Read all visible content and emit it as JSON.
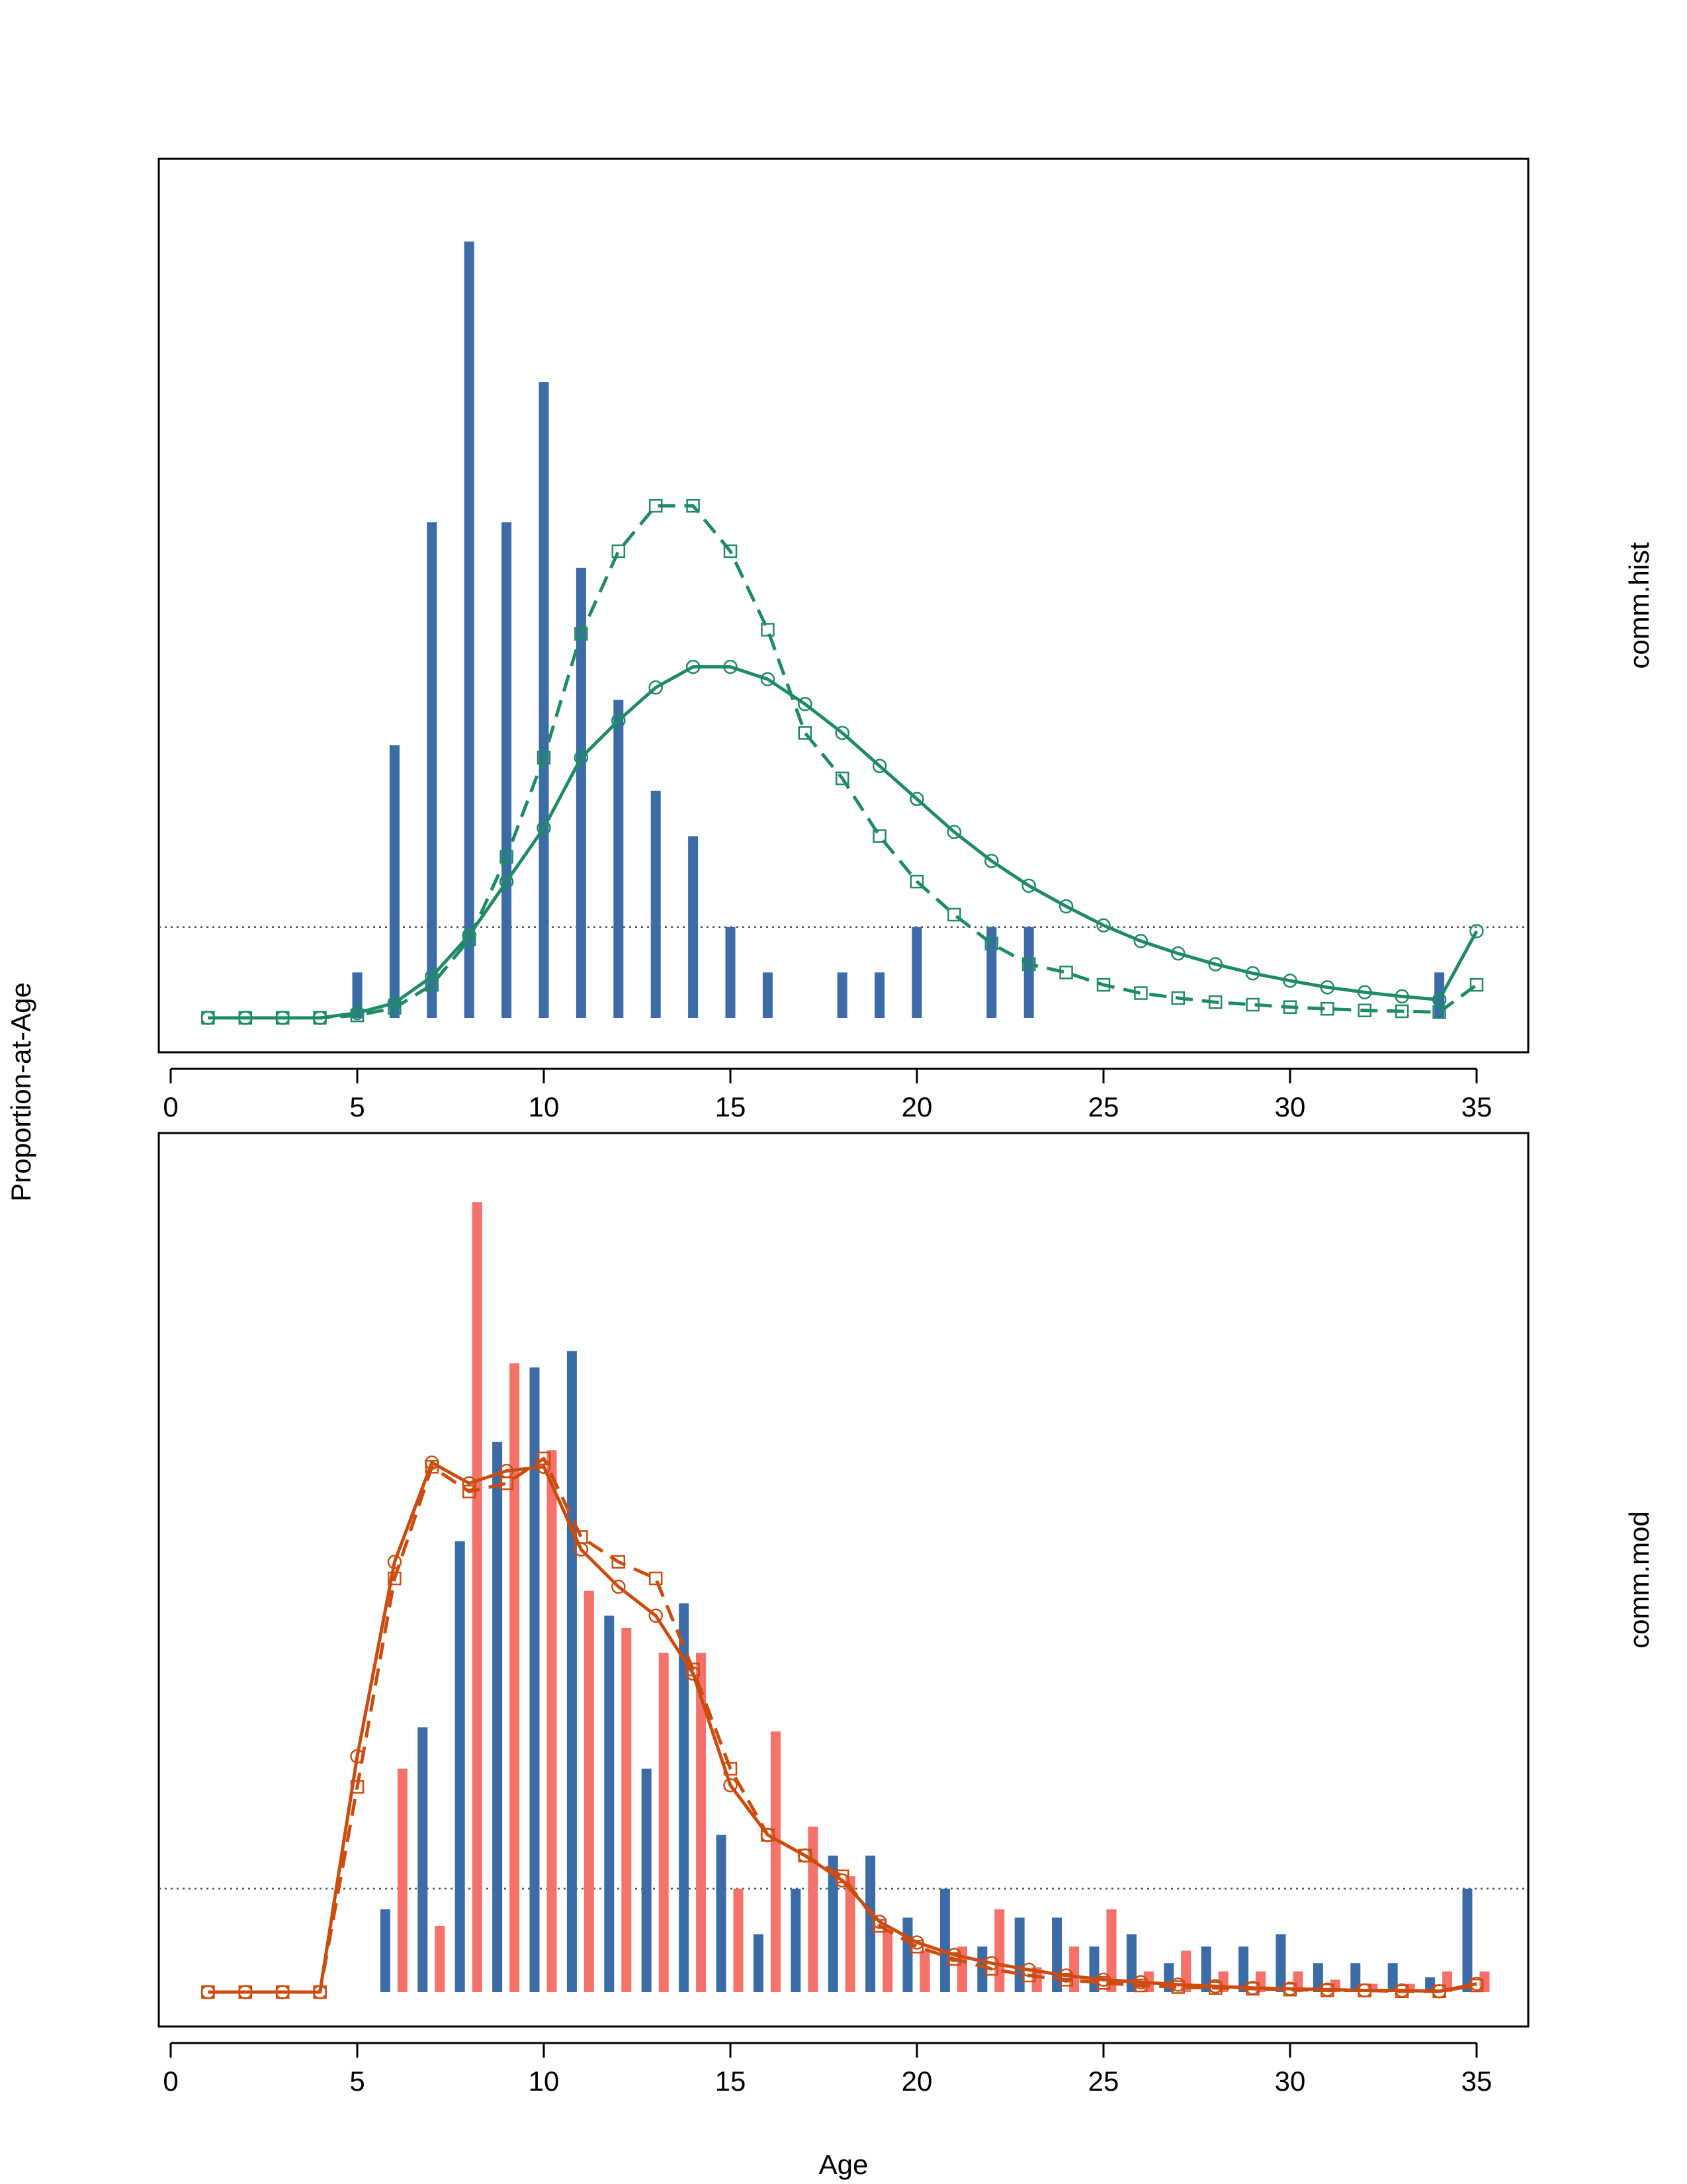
{
  "figure": {
    "ylabel": "Proportion-at-Age",
    "xlabel": "Age"
  },
  "colors": {
    "obs_bar": "#3c6ca8",
    "obs2_bar": "#f4726a",
    "panel1_line": "#1f8a68",
    "panel2_line": "#cc4c0f",
    "ref_line": "#555555"
  },
  "chart_data": [
    {
      "type": "bar",
      "panel_label": "comm.hist",
      "xlim": [
        0,
        36
      ],
      "ylim": [
        0,
        1
      ],
      "x_ticks": [
        0,
        5,
        10,
        15,
        20,
        25,
        30,
        35
      ],
      "y_ticks_visible": false,
      "grid": false,
      "reference_line_y": 0.11,
      "bars": {
        "x": [
          5,
          6,
          7,
          8,
          9,
          10,
          11,
          12,
          13,
          14,
          15,
          16,
          18,
          19,
          20,
          22,
          23,
          34
        ],
        "values": [
          0.055,
          0.33,
          0.6,
          0.94,
          0.6,
          0.77,
          0.545,
          0.385,
          0.275,
          0.22,
          0.11,
          0.055,
          0.055,
          0.055,
          0.11,
          0.11,
          0.11,
          0.055
        ]
      },
      "series": [
        {
          "line": "solid",
          "marker": "circle",
          "x": [
            1,
            2,
            3,
            4,
            5,
            6,
            7,
            8,
            9,
            10,
            11,
            12,
            13,
            14,
            15,
            16,
            17,
            18,
            19,
            20,
            21,
            22,
            23,
            24,
            25,
            26,
            27,
            28,
            29,
            30,
            31,
            32,
            33,
            34,
            35
          ],
          "values": [
            0,
            0,
            0,
            0,
            0.006,
            0.018,
            0.05,
            0.1,
            0.165,
            0.23,
            0.315,
            0.36,
            0.4,
            0.425,
            0.425,
            0.41,
            0.38,
            0.345,
            0.305,
            0.265,
            0.225,
            0.19,
            0.16,
            0.135,
            0.112,
            0.093,
            0.078,
            0.065,
            0.054,
            0.045,
            0.037,
            0.031,
            0.026,
            0.022,
            0.105
          ]
        },
        {
          "line": "dashed",
          "marker": "square",
          "x": [
            1,
            2,
            3,
            4,
            5,
            6,
            7,
            8,
            9,
            10,
            11,
            12,
            13,
            14,
            15,
            16,
            17,
            18,
            19,
            20,
            21,
            22,
            23,
            24,
            25,
            26,
            27,
            28,
            29,
            30,
            31,
            32,
            33,
            34,
            35
          ],
          "values": [
            0,
            0,
            0,
            0,
            0.003,
            0.012,
            0.04,
            0.095,
            0.195,
            0.315,
            0.465,
            0.565,
            0.62,
            0.62,
            0.565,
            0.47,
            0.345,
            0.29,
            0.22,
            0.165,
            0.125,
            0.09,
            0.065,
            0.055,
            0.04,
            0.03,
            0.024,
            0.019,
            0.016,
            0.013,
            0.011,
            0.009,
            0.008,
            0.007,
            0.04
          ]
        }
      ]
    },
    {
      "type": "bar",
      "panel_label": "comm.mod",
      "xlim": [
        0,
        36
      ],
      "ylim": [
        0,
        1
      ],
      "x_ticks": [
        0,
        5,
        10,
        15,
        20,
        25,
        30,
        35
      ],
      "y_ticks_visible": false,
      "grid": false,
      "reference_line_y": 0.125,
      "bars_blue": {
        "x": [
          6,
          7,
          8,
          9,
          10,
          11,
          12,
          13,
          14,
          15,
          16,
          17,
          18,
          19,
          20,
          21,
          22,
          23,
          24,
          25,
          26,
          27,
          28,
          29,
          30,
          31,
          32,
          33,
          34,
          35
        ],
        "values": [
          0.1,
          0.32,
          0.545,
          0.665,
          0.755,
          0.775,
          0.455,
          0.27,
          0.47,
          0.19,
          0.07,
          0.125,
          0.165,
          0.165,
          0.09,
          0.125,
          0.055,
          0.09,
          0.09,
          0.055,
          0.07,
          0.035,
          0.055,
          0.055,
          0.07,
          0.035,
          0.035,
          0.035,
          0.018,
          0.125
        ]
      },
      "bars_red": {
        "x": [
          6,
          7,
          8,
          9,
          10,
          11,
          12,
          13,
          14,
          15,
          16,
          17,
          18,
          19,
          20,
          21,
          22,
          23,
          24,
          25,
          26,
          27,
          28,
          29,
          30,
          31,
          32,
          33,
          34,
          35
        ],
        "values": [
          0.27,
          0.08,
          0.955,
          0.76,
          0.655,
          0.485,
          0.44,
          0.41,
          0.41,
          0.125,
          0.315,
          0.2,
          0.14,
          0.075,
          0.05,
          0.055,
          0.1,
          0.03,
          0.055,
          0.1,
          0.025,
          0.05,
          0.025,
          0.025,
          0.025,
          0.015,
          0.01,
          0.01,
          0.025,
          0.025
        ]
      },
      "series": [
        {
          "line": "solid",
          "marker": "circle",
          "x": [
            1,
            2,
            3,
            4,
            5,
            6,
            7,
            8,
            9,
            10,
            11,
            12,
            13,
            14,
            15,
            16,
            17,
            18,
            19,
            20,
            21,
            22,
            23,
            24,
            25,
            26,
            27,
            28,
            29,
            30,
            31,
            32,
            33,
            34,
            35
          ],
          "values": [
            0,
            0,
            0,
            0,
            0.285,
            0.52,
            0.64,
            0.615,
            0.63,
            0.635,
            0.535,
            0.49,
            0.455,
            0.385,
            0.25,
            0.19,
            0.165,
            0.135,
            0.085,
            0.06,
            0.045,
            0.035,
            0.027,
            0.02,
            0.015,
            0.012,
            0.009,
            0.007,
            0.005,
            0.004,
            0.003,
            0.002,
            0.002,
            0.001,
            0.01
          ]
        },
        {
          "line": "dashed",
          "marker": "square",
          "x": [
            1,
            2,
            3,
            4,
            5,
            6,
            7,
            8,
            9,
            10,
            11,
            12,
            13,
            14,
            15,
            16,
            17,
            18,
            19,
            20,
            21,
            22,
            23,
            24,
            25,
            26,
            27,
            28,
            29,
            30,
            31,
            32,
            33,
            34,
            35
          ],
          "values": [
            0,
            0,
            0,
            0,
            0.248,
            0.5,
            0.635,
            0.605,
            0.615,
            0.645,
            0.55,
            0.52,
            0.5,
            0.39,
            0.27,
            0.19,
            0.165,
            0.14,
            0.08,
            0.055,
            0.04,
            0.028,
            0.02,
            0.015,
            0.011,
            0.008,
            0.006,
            0.005,
            0.004,
            0.003,
            0.002,
            0.002,
            0.001,
            0.001,
            0.008
          ]
        }
      ]
    }
  ]
}
